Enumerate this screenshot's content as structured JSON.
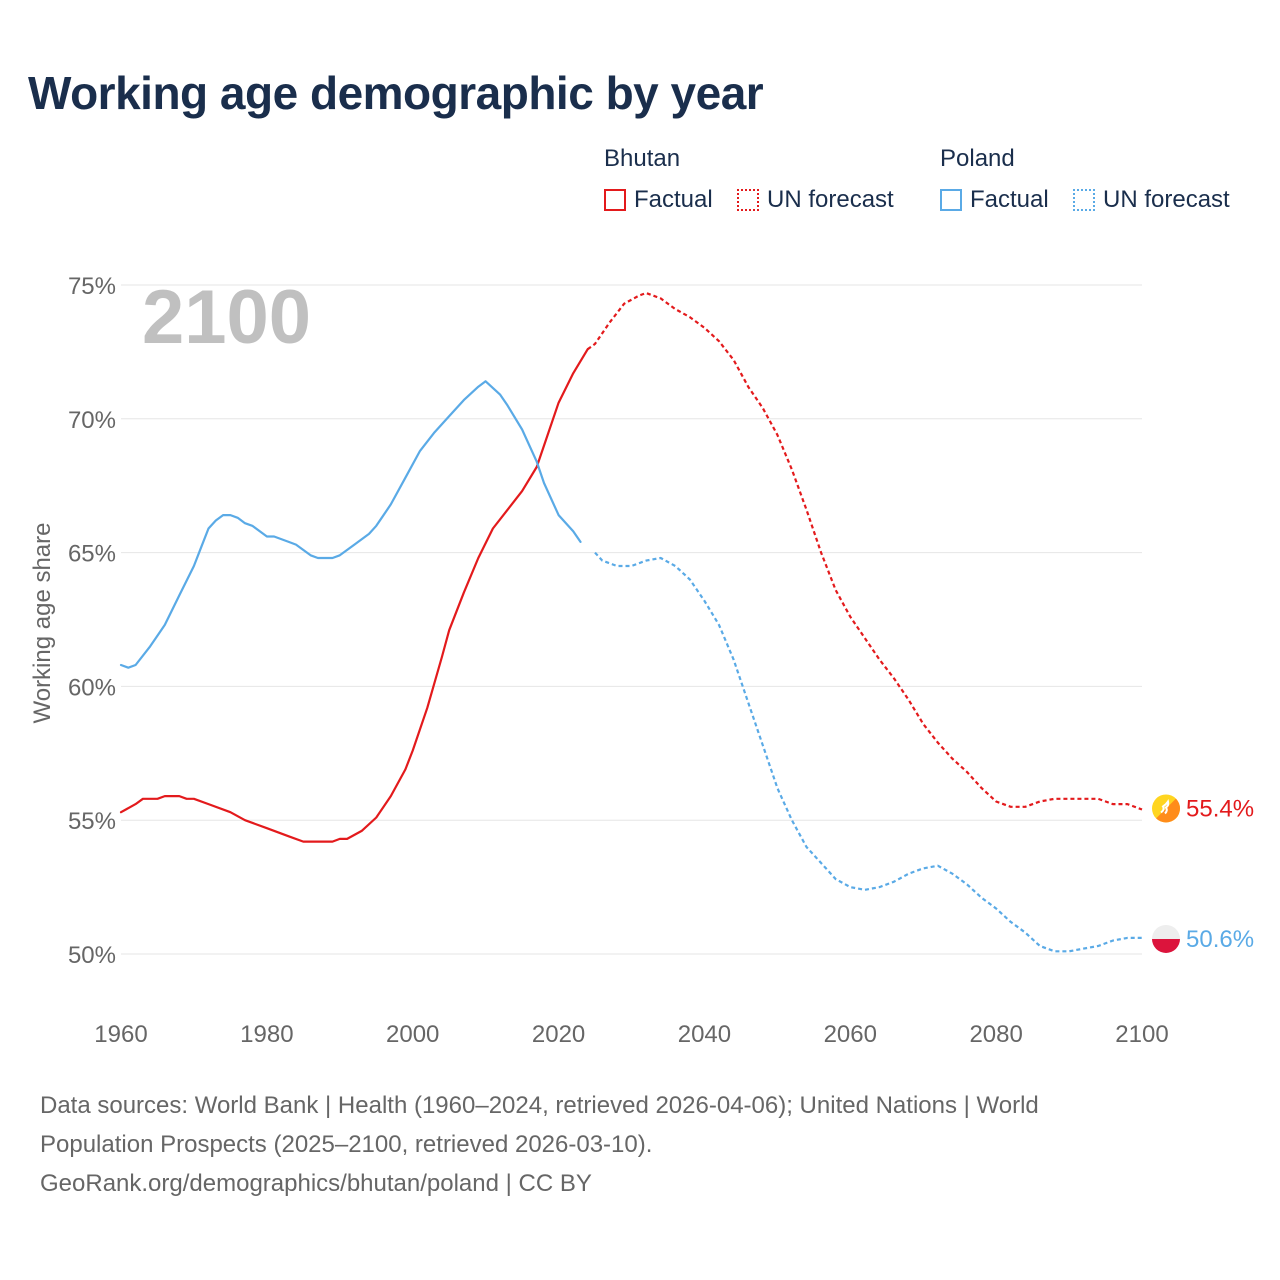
{
  "title": "Working age demographic by year",
  "legend": {
    "groups": [
      {
        "country": "Bhutan",
        "factual_label": "Factual",
        "forecast_label": "UN forecast"
      },
      {
        "country": "Poland",
        "factual_label": "Factual",
        "forecast_label": "UN forecast"
      }
    ]
  },
  "footer": {
    "line1": "Data sources: World Bank | Health (1960–2024, retrieved 2026-04-06); United Nations | World",
    "line2": "Population Prospects (2025–2100, retrieved 2026-03-10).",
    "line3": "GeoRank.org/demographics/bhutan/poland | CC BY"
  },
  "colors": {
    "bhutan": "#e31a1c",
    "poland": "#5aaae6",
    "grid": "#e6e6e6",
    "axis_text": "#666666",
    "year_watermark": "#c0c0c0"
  },
  "chart_data": {
    "type": "line",
    "year_label": "2100",
    "ylabel": "Working age share",
    "ylim": [
      48,
      76
    ],
    "yticks": [
      50,
      55,
      60,
      65,
      70,
      75
    ],
    "ytick_labels": [
      "50%",
      "55%",
      "60%",
      "65%",
      "70%",
      "75%"
    ],
    "xlim": [
      1960,
      2100
    ],
    "xticks": [
      1960,
      1980,
      2000,
      2020,
      2040,
      2060,
      2080,
      2100
    ],
    "xtick_labels": [
      "1960",
      "1980",
      "2000",
      "2020",
      "2040",
      "2060",
      "2080",
      "2100"
    ],
    "forecast_start": 2024,
    "series": [
      {
        "name": "Bhutan",
        "color": "#e31a1c",
        "end_label": "55.4%",
        "points": [
          [
            1960,
            55.3
          ],
          [
            1962,
            55.6
          ],
          [
            1963,
            55.8
          ],
          [
            1965,
            55.8
          ],
          [
            1966,
            55.9
          ],
          [
            1968,
            55.9
          ],
          [
            1969,
            55.8
          ],
          [
            1970,
            55.8
          ],
          [
            1972,
            55.6
          ],
          [
            1975,
            55.3
          ],
          [
            1977,
            55.0
          ],
          [
            1980,
            54.7
          ],
          [
            1983,
            54.4
          ],
          [
            1985,
            54.2
          ],
          [
            1987,
            54.2
          ],
          [
            1989,
            54.2
          ],
          [
            1990,
            54.3
          ],
          [
            1991,
            54.3
          ],
          [
            1993,
            54.6
          ],
          [
            1995,
            55.1
          ],
          [
            1997,
            55.9
          ],
          [
            1999,
            56.9
          ],
          [
            2000,
            57.6
          ],
          [
            2002,
            59.2
          ],
          [
            2004,
            61.1
          ],
          [
            2005,
            62.1
          ],
          [
            2007,
            63.5
          ],
          [
            2009,
            64.8
          ],
          [
            2011,
            65.9
          ],
          [
            2013,
            66.6
          ],
          [
            2015,
            67.3
          ],
          [
            2017,
            68.2
          ],
          [
            2018,
            69.0
          ],
          [
            2020,
            70.6
          ],
          [
            2022,
            71.7
          ],
          [
            2024,
            72.6
          ],
          [
            2025,
            72.8
          ],
          [
            2027,
            73.6
          ],
          [
            2029,
            74.3
          ],
          [
            2031,
            74.6
          ],
          [
            2032,
            74.7
          ],
          [
            2034,
            74.5
          ],
          [
            2036,
            74.1
          ],
          [
            2038,
            73.8
          ],
          [
            2040,
            73.4
          ],
          [
            2042,
            72.9
          ],
          [
            2044,
            72.2
          ],
          [
            2046,
            71.2
          ],
          [
            2048,
            70.4
          ],
          [
            2050,
            69.4
          ],
          [
            2052,
            68.1
          ],
          [
            2054,
            66.6
          ],
          [
            2056,
            65.0
          ],
          [
            2058,
            63.6
          ],
          [
            2060,
            62.6
          ],
          [
            2062,
            61.8
          ],
          [
            2064,
            61.0
          ],
          [
            2066,
            60.3
          ],
          [
            2068,
            59.5
          ],
          [
            2070,
            58.6
          ],
          [
            2072,
            57.9
          ],
          [
            2074,
            57.3
          ],
          [
            2076,
            56.8
          ],
          [
            2078,
            56.2
          ],
          [
            2080,
            55.7
          ],
          [
            2082,
            55.5
          ],
          [
            2084,
            55.5
          ],
          [
            2086,
            55.7
          ],
          [
            2088,
            55.8
          ],
          [
            2090,
            55.8
          ],
          [
            2092,
            55.8
          ],
          [
            2094,
            55.8
          ],
          [
            2096,
            55.6
          ],
          [
            2098,
            55.6
          ],
          [
            2100,
            55.4
          ]
        ]
      },
      {
        "name": "Poland",
        "color": "#5aaae6",
        "end_label": "50.6%",
        "points": [
          [
            1960,
            60.8
          ],
          [
            1961,
            60.7
          ],
          [
            1962,
            60.8
          ],
          [
            1964,
            61.5
          ],
          [
            1966,
            62.3
          ],
          [
            1968,
            63.4
          ],
          [
            1970,
            64.5
          ],
          [
            1971,
            65.2
          ],
          [
            1972,
            65.9
          ],
          [
            1973,
            66.2
          ],
          [
            1974,
            66.4
          ],
          [
            1975,
            66.4
          ],
          [
            1976,
            66.3
          ],
          [
            1977,
            66.1
          ],
          [
            1978,
            66.0
          ],
          [
            1980,
            65.6
          ],
          [
            1981,
            65.6
          ],
          [
            1983,
            65.4
          ],
          [
            1984,
            65.3
          ],
          [
            1986,
            64.9
          ],
          [
            1987,
            64.8
          ],
          [
            1989,
            64.8
          ],
          [
            1990,
            64.9
          ],
          [
            1992,
            65.3
          ],
          [
            1994,
            65.7
          ],
          [
            1995,
            66.0
          ],
          [
            1997,
            66.8
          ],
          [
            1999,
            67.8
          ],
          [
            2001,
            68.8
          ],
          [
            2003,
            69.5
          ],
          [
            2005,
            70.1
          ],
          [
            2007,
            70.7
          ],
          [
            2009,
            71.2
          ],
          [
            2010,
            71.4
          ],
          [
            2012,
            70.9
          ],
          [
            2013,
            70.5
          ],
          [
            2015,
            69.6
          ],
          [
            2017,
            68.4
          ],
          [
            2018,
            67.6
          ],
          [
            2020,
            66.4
          ],
          [
            2022,
            65.8
          ],
          [
            2023,
            65.4
          ],
          [
            2025,
            65.0
          ],
          [
            2026,
            64.7
          ],
          [
            2028,
            64.5
          ],
          [
            2030,
            64.5
          ],
          [
            2032,
            64.7
          ],
          [
            2034,
            64.8
          ],
          [
            2036,
            64.5
          ],
          [
            2038,
            64.0
          ],
          [
            2040,
            63.2
          ],
          [
            2042,
            62.3
          ],
          [
            2044,
            61.0
          ],
          [
            2046,
            59.4
          ],
          [
            2048,
            57.8
          ],
          [
            2050,
            56.2
          ],
          [
            2052,
            55.0
          ],
          [
            2054,
            54.0
          ],
          [
            2056,
            53.4
          ],
          [
            2058,
            52.8
          ],
          [
            2060,
            52.5
          ],
          [
            2062,
            52.4
          ],
          [
            2064,
            52.5
          ],
          [
            2066,
            52.7
          ],
          [
            2068,
            53.0
          ],
          [
            2070,
            53.2
          ],
          [
            2072,
            53.3
          ],
          [
            2074,
            53.0
          ],
          [
            2076,
            52.6
          ],
          [
            2078,
            52.1
          ],
          [
            2080,
            51.7
          ],
          [
            2082,
            51.2
          ],
          [
            2084,
            50.8
          ],
          [
            2086,
            50.3
          ],
          [
            2088,
            50.1
          ],
          [
            2090,
            50.1
          ],
          [
            2092,
            50.2
          ],
          [
            2094,
            50.3
          ],
          [
            2096,
            50.5
          ],
          [
            2098,
            50.6
          ],
          [
            2100,
            50.6
          ]
        ]
      }
    ]
  }
}
